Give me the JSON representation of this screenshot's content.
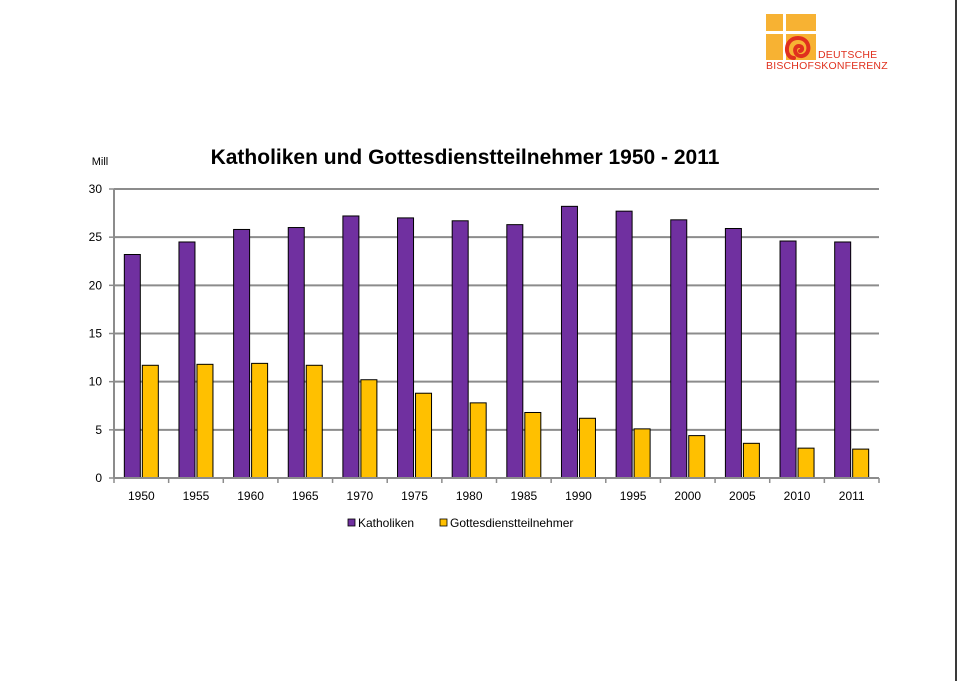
{
  "logo": {
    "name_line1": "DEUTSCHE",
    "name_line2": "BISCHOFSKONFERENZ",
    "colors": {
      "orange": "#f7b233",
      "red": "#e0301e"
    }
  },
  "chart_data": {
    "type": "bar",
    "title": "Katholiken und Gottesdienstteilnehmer 1950 - 2011",
    "ylabel": "Mill",
    "xlabel": "",
    "ylim": [
      0,
      30
    ],
    "yticks": [
      0,
      5,
      10,
      15,
      20,
      25,
      30
    ],
    "grid": true,
    "legend_position": "bottom",
    "categories": [
      "1950",
      "1955",
      "1960",
      "1965",
      "1970",
      "1975",
      "1980",
      "1985",
      "1990",
      "1995",
      "2000",
      "2005",
      "2010",
      "2011"
    ],
    "series": [
      {
        "name": "Katholiken",
        "color": "#7030a0",
        "values": [
          23.2,
          24.5,
          25.8,
          26.0,
          27.2,
          27.0,
          26.7,
          26.3,
          28.2,
          27.7,
          26.8,
          25.9,
          24.6,
          24.5
        ]
      },
      {
        "name": "Gottesdienstteilnehmer",
        "color": "#ffc000",
        "values": [
          11.7,
          11.8,
          11.9,
          11.7,
          10.2,
          8.8,
          7.8,
          6.8,
          6.2,
          5.1,
          4.4,
          3.6,
          3.1,
          3.0
        ]
      }
    ]
  }
}
